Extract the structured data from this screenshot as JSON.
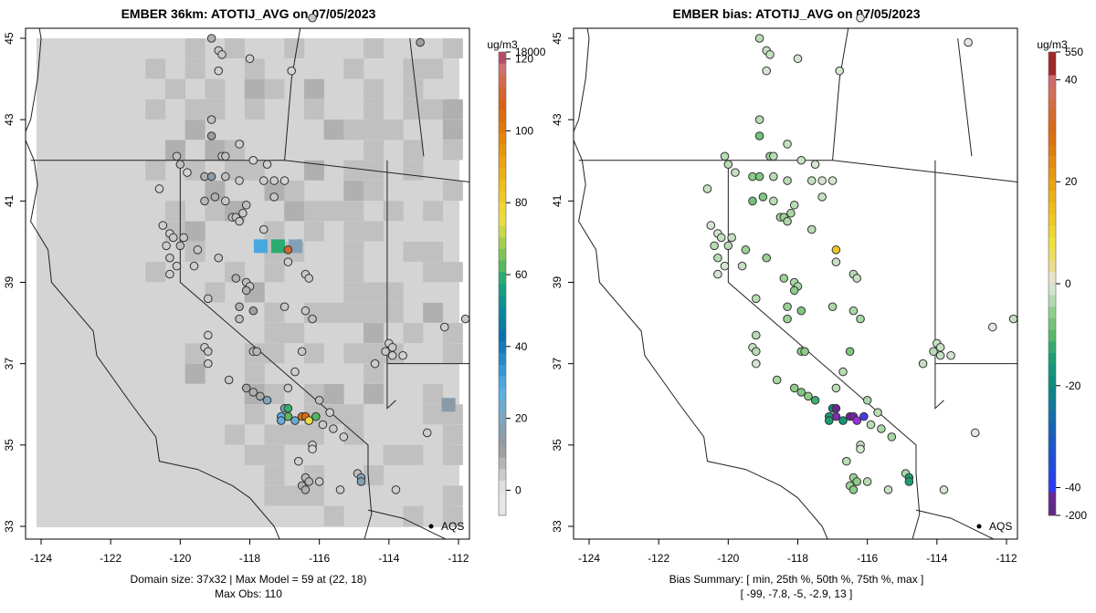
{
  "chart_data": [
    {
      "type": "heatmap",
      "title": "EMBER 36km: ATOTIJ_AVG on 07/05/2023",
      "xlabel": "",
      "ylabel": "",
      "x_ticks": [
        "-124",
        "-122",
        "-120",
        "-118",
        "-116",
        "-114",
        "-112"
      ],
      "y_ticks": [
        "33",
        "35",
        "37",
        "39",
        "41",
        "43",
        "45"
      ],
      "xlim": [
        -124.4,
        -111.7
      ],
      "ylim": [
        32.7,
        45.3
      ],
      "colorbar": {
        "units": "ug/m3",
        "tick_labels": [
          "0",
          "20",
          "40",
          "60",
          "80",
          "100",
          "120",
          "18000"
        ],
        "tick_values": [
          0,
          20,
          40,
          60,
          80,
          100,
          120,
          18000
        ]
      },
      "footer": [
        "Domain size: 37x32 | Max Model = 59 at (22, 18)",
        "Max Obs: 110"
      ],
      "annotation": "AQS",
      "highlight_cells": [
        {
          "lon": -117.7,
          "lat": 39.9,
          "value": 30
        },
        {
          "lon": -117.2,
          "lat": 39.9,
          "value": 59
        },
        {
          "lon": -116.7,
          "lat": 39.9,
          "value": 18
        },
        {
          "lon": -112.3,
          "lat": 36.0,
          "value": 15
        }
      ],
      "grid_on": false
    },
    {
      "type": "scatter",
      "title": "EMBER bias: ATOTIJ_AVG on 07/05/2023",
      "xlabel": "",
      "ylabel": "",
      "x_ticks": [
        "-124",
        "-122",
        "-120",
        "-118",
        "-116",
        "-114",
        "-112"
      ],
      "y_ticks": [
        "33",
        "35",
        "37",
        "39",
        "41",
        "43",
        "45"
      ],
      "xlim": [
        -124.4,
        -111.7
      ],
      "ylim": [
        32.7,
        45.3
      ],
      "colorbar": {
        "units": "ug/m3",
        "tick_labels": [
          "-200",
          "-40",
          "-20",
          "0",
          "20",
          "40",
          "550"
        ],
        "tick_values": [
          -200,
          -40,
          -20,
          0,
          20,
          40,
          550
        ]
      },
      "footer": [
        "Bias Summary: [ min, 25th %, 50th %, 75th %, max ]",
        "[ -99,   -7.8,   -5,   -2.9,   13 ]"
      ],
      "bias_summary": {
        "min": -99,
        "p25": -7.8,
        "p50": -5,
        "p75": -2.9,
        "max": 13
      },
      "annotation": "AQS",
      "grid_on": false
    }
  ],
  "stations": [
    {
      "lon": -119.1,
      "lat": 45.0,
      "obs": 8,
      "bias": -3
    },
    {
      "lon": -118.9,
      "lat": 44.7,
      "obs": 5,
      "bias": -2
    },
    {
      "lon": -118.8,
      "lat": 44.6,
      "obs": 5,
      "bias": -2
    },
    {
      "lon": -118.0,
      "lat": 44.5,
      "obs": 4,
      "bias": -1
    },
    {
      "lon": -116.8,
      "lat": 44.2,
      "obs": 3,
      "bias": -1
    },
    {
      "lon": -118.9,
      "lat": 44.2,
      "obs": 4,
      "bias": -1
    },
    {
      "lon": -113.1,
      "lat": 44.9,
      "obs": 10,
      "bias": 0
    },
    {
      "lon": -116.2,
      "lat": 45.5,
      "obs": 5,
      "bias": 0
    },
    {
      "lon": -119.1,
      "lat": 43.0,
      "obs": 6,
      "bias": -3
    },
    {
      "lon": -119.1,
      "lat": 42.6,
      "obs": 12,
      "bias": -8
    },
    {
      "lon": -118.3,
      "lat": 42.4,
      "obs": 4,
      "bias": -2
    },
    {
      "lon": -118.8,
      "lat": 42.1,
      "obs": 5,
      "bias": -5
    },
    {
      "lon": -118.7,
      "lat": 42.1,
      "obs": 6,
      "bias": -3
    },
    {
      "lon": -117.9,
      "lat": 42.0,
      "obs": 3,
      "bias": -2
    },
    {
      "lon": -117.5,
      "lat": 41.9,
      "obs": 4,
      "bias": -1
    },
    {
      "lon": -120.1,
      "lat": 42.1,
      "obs": 6,
      "bias": -3
    },
    {
      "lon": -120.0,
      "lat": 41.9,
      "obs": 6,
      "bias": -3
    },
    {
      "lon": -119.8,
      "lat": 41.7,
      "obs": 3,
      "bias": -2
    },
    {
      "lon": -119.3,
      "lat": 41.6,
      "obs": 8,
      "bias": -6
    },
    {
      "lon": -119.1,
      "lat": 41.6,
      "obs": 14,
      "bias": -7
    },
    {
      "lon": -118.7,
      "lat": 41.6,
      "obs": 6,
      "bias": -3
    },
    {
      "lon": -118.3,
      "lat": 41.5,
      "obs": 4,
      "bias": -3
    },
    {
      "lon": -117.6,
      "lat": 41.5,
      "obs": 4,
      "bias": -2
    },
    {
      "lon": -117.3,
      "lat": 41.5,
      "obs": 4,
      "bias": -1
    },
    {
      "lon": -117.0,
      "lat": 41.5,
      "obs": 3,
      "bias": -1
    },
    {
      "lon": -120.6,
      "lat": 41.3,
      "obs": 3,
      "bias": -2
    },
    {
      "lon": -119.3,
      "lat": 41.0,
      "obs": 7,
      "bias": -8
    },
    {
      "lon": -119.0,
      "lat": 41.1,
      "obs": 8,
      "bias": -7
    },
    {
      "lon": -118.7,
      "lat": 41.0,
      "obs": 5,
      "bias": -3
    },
    {
      "lon": -118.1,
      "lat": 40.9,
      "obs": 6,
      "bias": -3
    },
    {
      "lon": -117.3,
      "lat": 41.1,
      "obs": 5,
      "bias": -2
    },
    {
      "lon": -118.5,
      "lat": 40.6,
      "obs": 5,
      "bias": -4
    },
    {
      "lon": -118.4,
      "lat": 40.6,
      "obs": 6,
      "bias": -5
    },
    {
      "lon": -118.2,
      "lat": 40.7,
      "obs": 5,
      "bias": -4
    },
    {
      "lon": -118.3,
      "lat": 40.5,
      "obs": 5,
      "bias": -4
    },
    {
      "lon": -117.6,
      "lat": 40.3,
      "obs": 4,
      "bias": -3
    },
    {
      "lon": -120.5,
      "lat": 40.4,
      "obs": 4,
      "bias": -1
    },
    {
      "lon": -120.3,
      "lat": 40.2,
      "obs": 4,
      "bias": -1
    },
    {
      "lon": -120.2,
      "lat": 40.1,
      "obs": 5,
      "bias": -2
    },
    {
      "lon": -119.9,
      "lat": 40.1,
      "obs": 5,
      "bias": -2
    },
    {
      "lon": -120.4,
      "lat": 39.9,
      "obs": 4,
      "bias": -3
    },
    {
      "lon": -120.0,
      "lat": 39.9,
      "obs": 6,
      "bias": -3
    },
    {
      "lon": -119.5,
      "lat": 39.8,
      "obs": 5,
      "bias": -5
    },
    {
      "lon": -118.9,
      "lat": 39.6,
      "obs": 5,
      "bias": -5
    },
    {
      "lon": -116.9,
      "lat": 39.8,
      "obs": 110,
      "bias": 13
    },
    {
      "lon": -116.9,
      "lat": 39.5,
      "obs": 4,
      "bias": -2
    },
    {
      "lon": -120.3,
      "lat": 39.6,
      "obs": 5,
      "bias": -3
    },
    {
      "lon": -120.1,
      "lat": 39.4,
      "obs": 4,
      "bias": -1
    },
    {
      "lon": -119.6,
      "lat": 39.4,
      "obs": 4,
      "bias": -2
    },
    {
      "lon": -120.3,
      "lat": 39.2,
      "obs": 4,
      "bias": -1
    },
    {
      "lon": -118.4,
      "lat": 39.1,
      "obs": 8,
      "bias": -5
    },
    {
      "lon": -118.1,
      "lat": 39.0,
      "obs": 6,
      "bias": -4
    },
    {
      "lon": -118.0,
      "lat": 38.9,
      "obs": 5,
      "bias": -4
    },
    {
      "lon": -118.1,
      "lat": 38.8,
      "obs": 8,
      "bias": -6
    },
    {
      "lon": -116.4,
      "lat": 39.2,
      "obs": 5,
      "bias": -3
    },
    {
      "lon": -116.3,
      "lat": 39.1,
      "obs": 5,
      "bias": -2
    },
    {
      "lon": -119.2,
      "lat": 38.6,
      "obs": 5,
      "bias": -3
    },
    {
      "lon": -118.3,
      "lat": 38.4,
      "obs": 8,
      "bias": -5
    },
    {
      "lon": -117.9,
      "lat": 38.3,
      "obs": 10,
      "bias": -7
    },
    {
      "lon": -117.0,
      "lat": 38.4,
      "obs": 5,
      "bias": -4
    },
    {
      "lon": -116.4,
      "lat": 38.3,
      "obs": 5,
      "bias": -4
    },
    {
      "lon": -118.3,
      "lat": 38.1,
      "obs": 6,
      "bias": -5
    },
    {
      "lon": -116.2,
      "lat": 38.1,
      "obs": 6,
      "bias": -4
    },
    {
      "lon": -119.2,
      "lat": 37.7,
      "obs": 4,
      "bias": -3
    },
    {
      "lon": -119.3,
      "lat": 37.4,
      "obs": 4,
      "bias": -2
    },
    {
      "lon": -119.2,
      "lat": 37.3,
      "obs": 5,
      "bias": -3
    },
    {
      "lon": -117.9,
      "lat": 37.3,
      "obs": 6,
      "bias": -6
    },
    {
      "lon": -117.8,
      "lat": 37.3,
      "obs": 7,
      "bias": -6
    },
    {
      "lon": -116.5,
      "lat": 37.3,
      "obs": 5,
      "bias": -7
    },
    {
      "lon": -119.2,
      "lat": 37.0,
      "obs": 4,
      "bias": -1
    },
    {
      "lon": -118.6,
      "lat": 36.6,
      "obs": 5,
      "bias": -4
    },
    {
      "lon": -116.7,
      "lat": 36.8,
      "obs": 4,
      "bias": -3
    },
    {
      "lon": -114.0,
      "lat": 37.5,
      "obs": 4,
      "bias": -2
    },
    {
      "lon": -113.9,
      "lat": 37.4,
      "obs": 5,
      "bias": -2
    },
    {
      "lon": -114.1,
      "lat": 37.3,
      "obs": 5,
      "bias": -3
    },
    {
      "lon": -113.9,
      "lat": 37.2,
      "obs": 4,
      "bias": -2
    },
    {
      "lon": -114.4,
      "lat": 37.0,
      "obs": 4,
      "bias": -2
    },
    {
      "lon": -113.6,
      "lat": 37.2,
      "obs": 3,
      "bias": -1
    },
    {
      "lon": -112.4,
      "lat": 37.9,
      "obs": 4,
      "bias": 0
    },
    {
      "lon": -111.8,
      "lat": 38.1,
      "obs": 5,
      "bias": -2
    },
    {
      "lon": -116.9,
      "lat": 36.4,
      "obs": 5,
      "bias": -3
    },
    {
      "lon": -118.1,
      "lat": 36.4,
      "obs": 9,
      "bias": -6
    },
    {
      "lon": -117.9,
      "lat": 36.3,
      "obs": 8,
      "bias": -7
    },
    {
      "lon": -117.7,
      "lat": 36.2,
      "obs": 9,
      "bias": -6
    },
    {
      "lon": -117.5,
      "lat": 36.1,
      "obs": 20,
      "bias": -12
    },
    {
      "lon": -117.0,
      "lat": 35.9,
      "obs": 23,
      "bias": -20
    },
    {
      "lon": -116.9,
      "lat": 35.9,
      "obs": 60,
      "bias": -99
    },
    {
      "lon": -116.9,
      "lat": 35.7,
      "obs": 63,
      "bias": -80
    },
    {
      "lon": -117.1,
      "lat": 35.7,
      "obs": 28,
      "bias": -16
    },
    {
      "lon": -117.1,
      "lat": 35.6,
      "obs": 25,
      "bias": -15
    },
    {
      "lon": -116.7,
      "lat": 35.6,
      "obs": 24,
      "bias": -17
    },
    {
      "lon": -116.5,
      "lat": 35.7,
      "obs": 100,
      "bias": -95
    },
    {
      "lon": -116.4,
      "lat": 35.7,
      "obs": 105,
      "bias": -96
    },
    {
      "lon": -116.3,
      "lat": 35.6,
      "obs": 75,
      "bias": -60
    },
    {
      "lon": -116.1,
      "lat": 35.7,
      "obs": 62,
      "bias": -45
    },
    {
      "lon": -116.0,
      "lat": 36.1,
      "obs": 6,
      "bias": -4
    },
    {
      "lon": -115.7,
      "lat": 35.8,
      "obs": 4,
      "bias": -3
    },
    {
      "lon": -115.6,
      "lat": 35.4,
      "obs": 5,
      "bias": -4
    },
    {
      "lon": -115.9,
      "lat": 35.5,
      "obs": 5,
      "bias": -3
    },
    {
      "lon": -115.3,
      "lat": 35.2,
      "obs": 4,
      "bias": -4
    },
    {
      "lon": -116.2,
      "lat": 35.0,
      "obs": 4,
      "bias": -2
    },
    {
      "lon": -116.2,
      "lat": 34.9,
      "obs": 3,
      "bias": -1
    },
    {
      "lon": -116.6,
      "lat": 34.6,
      "obs": 4,
      "bias": -3
    },
    {
      "lon": -116.4,
      "lat": 34.2,
      "obs": 7,
      "bias": -5
    },
    {
      "lon": -116.3,
      "lat": 34.1,
      "obs": 7,
      "bias": -6
    },
    {
      "lon": -116.5,
      "lat": 34.0,
      "obs": 8,
      "bias": -5
    },
    {
      "lon": -116.4,
      "lat": 33.9,
      "obs": 8,
      "bias": -6
    },
    {
      "lon": -116.0,
      "lat": 34.1,
      "obs": 5,
      "bias": -3
    },
    {
      "lon": -115.4,
      "lat": 33.9,
      "obs": 4,
      "bias": -2
    },
    {
      "lon": -114.9,
      "lat": 34.3,
      "obs": 6,
      "bias": -4
    },
    {
      "lon": -114.8,
      "lat": 34.2,
      "obs": 20,
      "bias": -15
    },
    {
      "lon": -114.8,
      "lat": 34.1,
      "obs": 18,
      "bias": -14
    },
    {
      "lon": -113.8,
      "lat": 33.9,
      "obs": 4,
      "bias": -1
    },
    {
      "lon": -112.9,
      "lat": 35.3,
      "obs": 4,
      "bias": 0
    }
  ]
}
